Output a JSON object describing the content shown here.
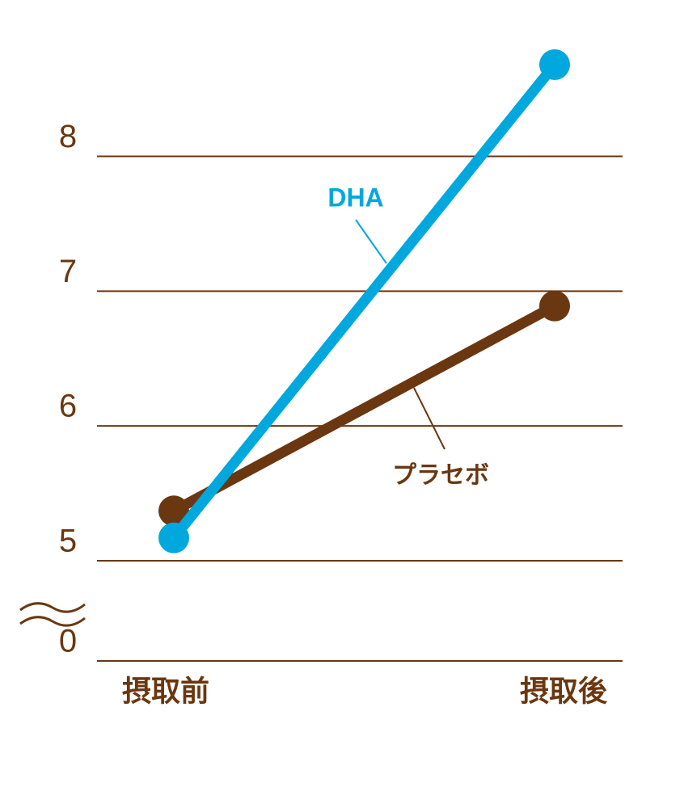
{
  "chart_data": {
    "type": "line",
    "categories": [
      "摂取前",
      "摂取後"
    ],
    "series": [
      {
        "name": "プラセボ",
        "color": "#6b3710",
        "values": [
          5.37,
          6.89
        ]
      },
      {
        "name": "DHA",
        "color": "#00a8de",
        "values": [
          5.17,
          8.68
        ]
      }
    ],
    "ylim": [
      0,
      8.8
    ],
    "yticks": [
      0,
      5,
      6,
      7,
      8
    ],
    "axis_break": [
      0,
      5
    ],
    "grid": true
  }
}
